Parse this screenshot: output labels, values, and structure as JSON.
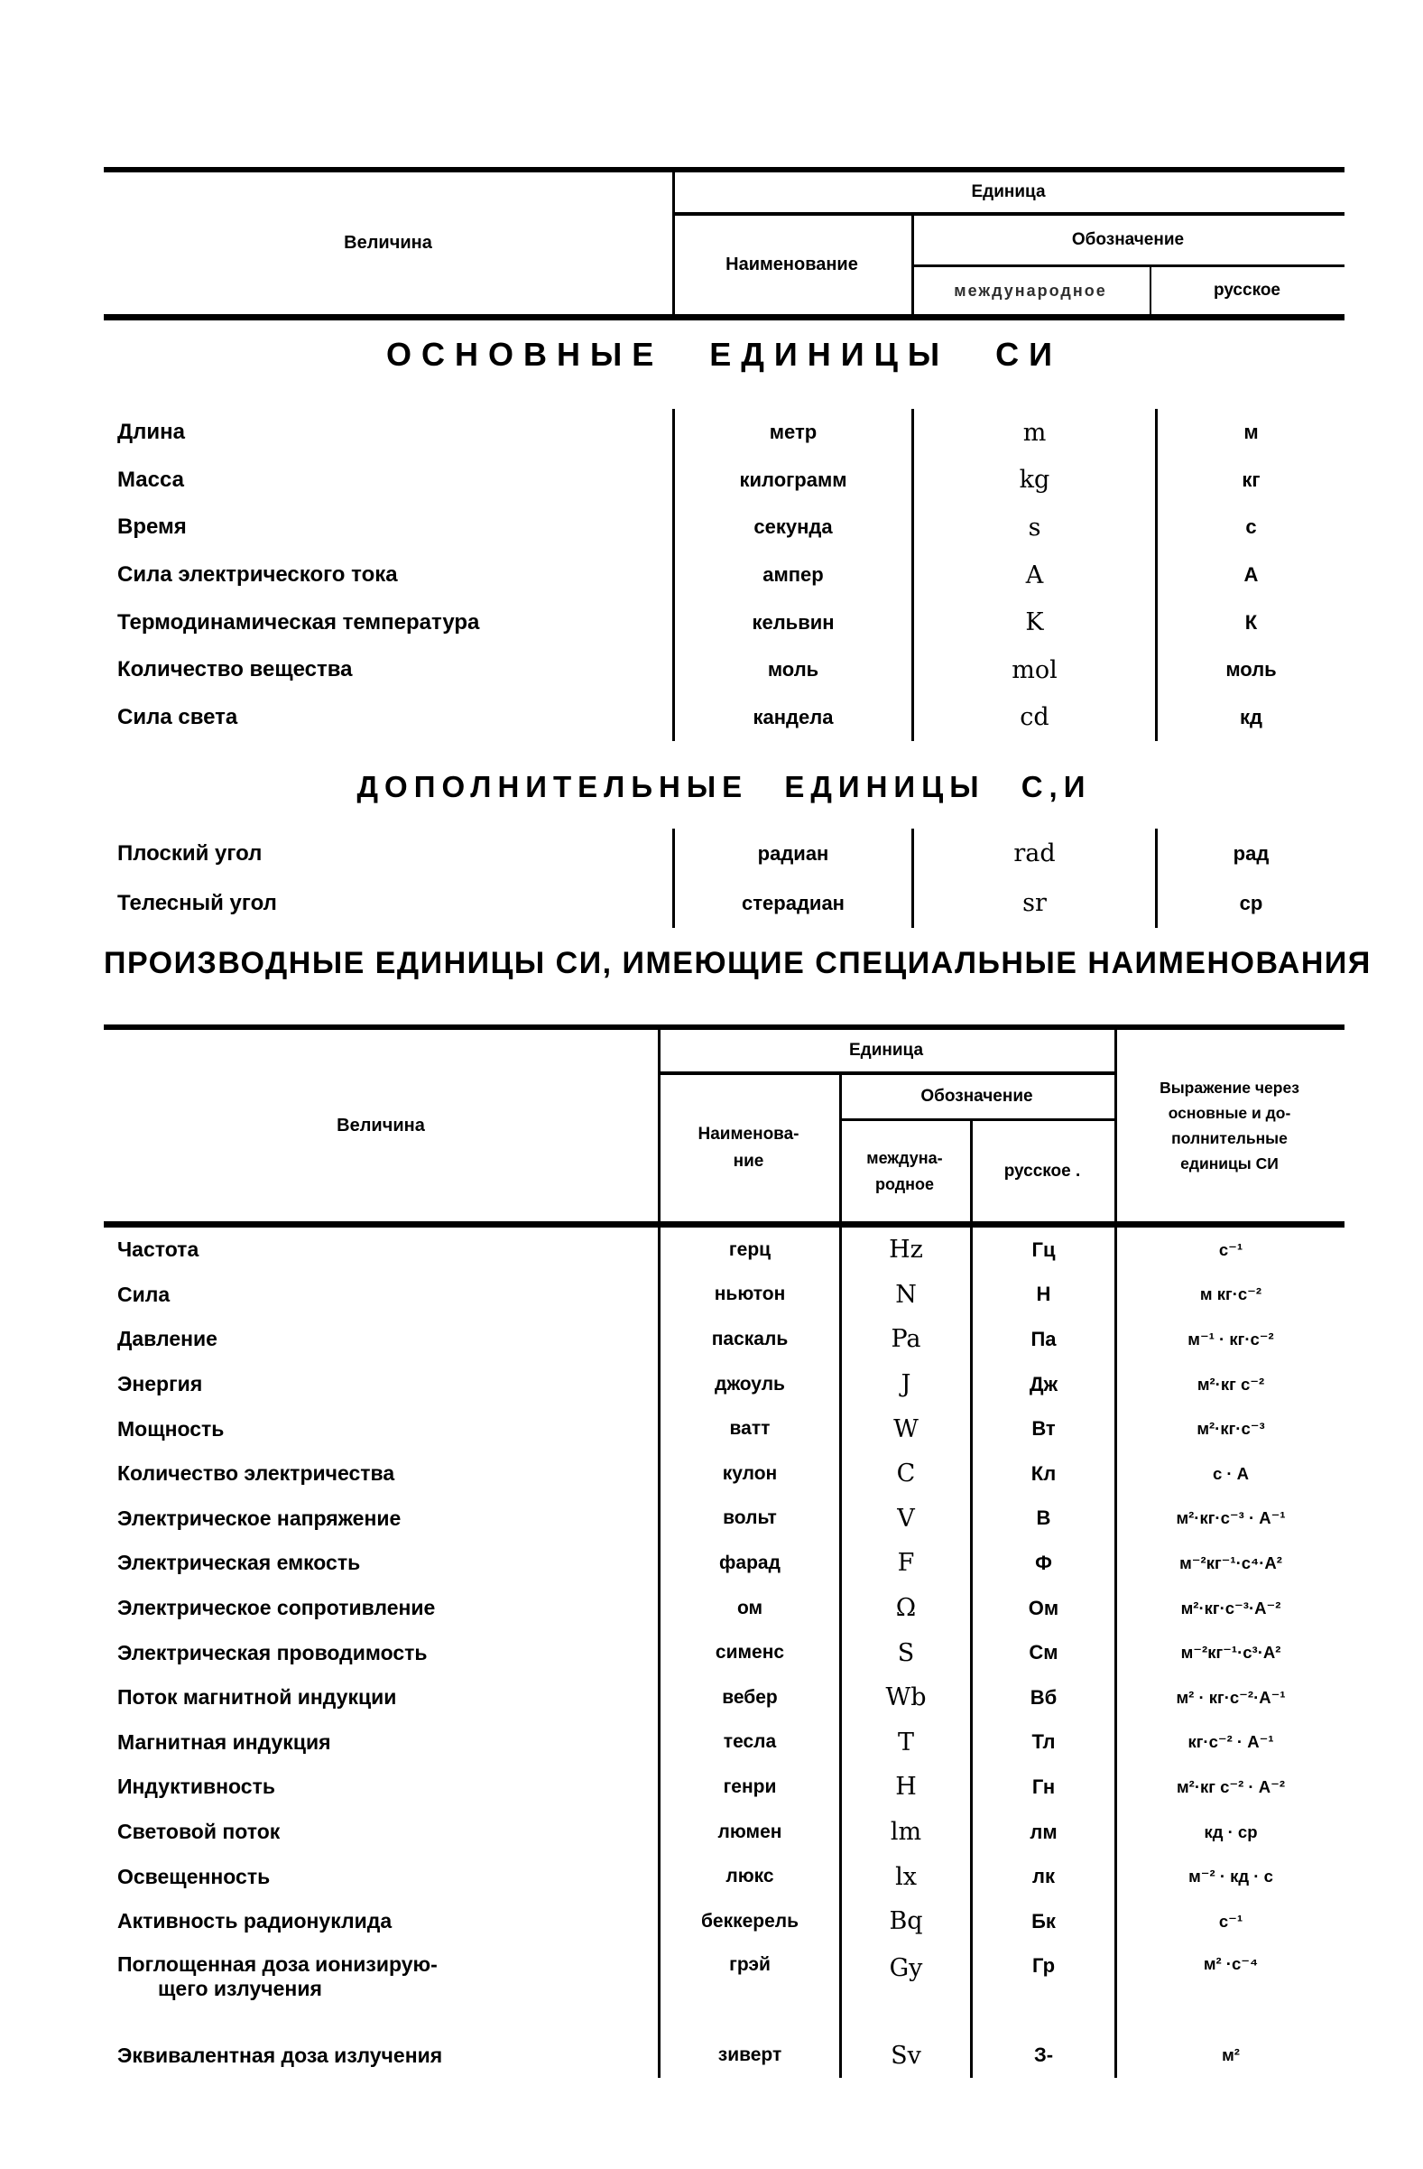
{
  "page": {
    "background": "#ffffff",
    "ink": "#000000"
  },
  "table1": {
    "header": {
      "quantity": "Величина",
      "unit": "Единица",
      "name": "Наименование",
      "designation": "Обозначение",
      "international": "международное",
      "russian": "русское"
    },
    "sections": [
      {
        "title": "ОСНОВНЫЕ ЕДИНИЦЫ СИ",
        "rows": [
          {
            "quantity": "Длина",
            "name": "метр",
            "intl": "m",
            "rus": "м"
          },
          {
            "quantity": "Масса",
            "name": "килограмм",
            "intl": "kg",
            "rus": "кг"
          },
          {
            "quantity": "Время",
            "name": "секунда",
            "intl": "s",
            "rus": "с"
          },
          {
            "quantity": "Сила электрического тока",
            "name": "ампер",
            "intl": "A",
            "rus": "А"
          },
          {
            "quantity": "Термодинамическая температура",
            "name": "кельвин",
            "intl": "K",
            "rus": "К"
          },
          {
            "quantity": "Количество вещества",
            "name": "моль",
            "intl": "mol",
            "rus": "моль"
          },
          {
            "quantity": "Сила света",
            "name": "кандела",
            "intl": "cd",
            "rus": "кд"
          }
        ]
      },
      {
        "title": "ДОПОЛНИТЕЛЬНЫЕ ЕДИНИЦЫ С,И",
        "rows": [
          {
            "quantity": "Плоский угол",
            "name": "радиан",
            "intl": "rad",
            "rus": "рад"
          },
          {
            "quantity": "Телесный угол",
            "name": "стерадиан",
            "intl": "sr",
            "rus": "ср"
          }
        ]
      }
    ]
  },
  "table2": {
    "title": "ПРОИЗВОДНЫЕ ЕДИНИЦЫ СИ, ИМЕЮЩИЕ СПЕЦИАЛЬНЫЕ НАИМЕНОВАНИЯ",
    "header": {
      "quantity": "Величина",
      "unit": "Единица",
      "name_l1": "Наименова-",
      "name_l2": "ние",
      "designation": "Обозначение",
      "intl_l1": "междуна-",
      "intl_l2": "родное",
      "russian": "русское .",
      "expr_l1": "Выражение через",
      "expr_l2": "основные и до-",
      "expr_l3": "полнительные",
      "expr_l4": "единицы СИ"
    },
    "rows": [
      {
        "quantity": "Частота",
        "name": "герц",
        "intl": "Hz",
        "rus": "Гц",
        "expr": "с⁻¹"
      },
      {
        "quantity": "Сила",
        "name": "ньютон",
        "intl": "N",
        "rus": "Н",
        "expr": "м кг·с⁻²"
      },
      {
        "quantity": "Давление",
        "name": "паскаль",
        "intl": "Pa",
        "rus": "Па",
        "expr": "м⁻¹ · кг·с⁻²"
      },
      {
        "quantity": "Энергия",
        "name": "джоуль",
        "intl": "J",
        "rus": "Дж",
        "expr": "м²·кг с⁻²"
      },
      {
        "quantity": "Мощность",
        "name": "ватт",
        "intl": "W",
        "rus": "Вт",
        "expr": "м²·кг·с⁻³"
      },
      {
        "quantity": "Количество электричества",
        "name": "кулон",
        "intl": "C",
        "rus": "Кл",
        "expr": "с · А"
      },
      {
        "quantity": "Электрическое напряжение",
        "name": "вольт",
        "intl": "V",
        "rus": "В",
        "expr": "м²·кг·с⁻³ · А⁻¹"
      },
      {
        "quantity": "Электрическая емкость",
        "name": "фарад",
        "intl": "F",
        "rus": "Ф",
        "expr": "м⁻²кг⁻¹·с⁴·А²"
      },
      {
        "quantity": "Электрическое сопротивление",
        "name": "ом",
        "intl": "Ω",
        "rus": "Ом",
        "expr": "м²·кг·с⁻³·А⁻²"
      },
      {
        "quantity": "Электрическая проводимость",
        "name": "сименс",
        "intl": "S",
        "rus": "См",
        "expr": "м⁻²кг⁻¹·с³·А²"
      },
      {
        "quantity": "Поток магнитной индукции",
        "name": "вебер",
        "intl": "Wb",
        "rus": "Вб",
        "expr": "м² · кг·с⁻²·А⁻¹"
      },
      {
        "quantity": "Магнитная индукция",
        "name": "тесла",
        "intl": "T",
        "rus": "Тл",
        "expr": "кг·с⁻² · А⁻¹"
      },
      {
        "quantity": "Индуктивность",
        "name": "генри",
        "intl": "H",
        "rus": "Гн",
        "expr": "м²·кг с⁻² · А⁻²"
      },
      {
        "quantity": "Световой поток",
        "name": "люмен",
        "intl": "lm",
        "rus": "лм",
        "expr": "кд · ср"
      },
      {
        "quantity": "Освещенность",
        "name": "люкс",
        "intl": "lx",
        "rus": "лк",
        "expr": "м⁻² · кд · с"
      },
      {
        "quantity": "Активность радионуклида",
        "name": "беккерель",
        "intl": "Bq",
        "rus": "Бк",
        "expr": "с⁻¹"
      },
      {
        "quantity": "Поглощенная доза ионизирую-",
        "quantity2": "щего излучения",
        "name": "грэй",
        "intl": "Gy",
        "rus": "Гр",
        "expr": "м² ·с⁻⁴",
        "tall": true
      },
      {
        "quantity": "Эквивалентная доза излучения",
        "name": "зиверт",
        "intl": "Sv",
        "rus": "З-",
        "expr": "м²"
      }
    ]
  }
}
